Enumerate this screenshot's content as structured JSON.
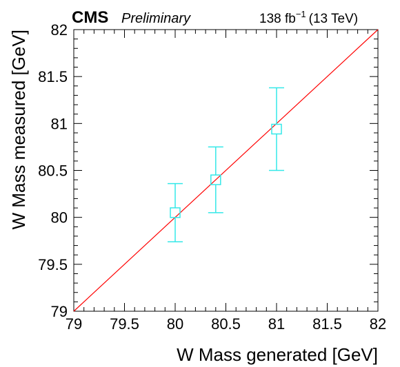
{
  "header": {
    "experiment": "CMS",
    "status": "Preliminary",
    "lumi_value": "138 fb",
    "lumi_exp": "−1",
    "energy": "(13 TeV)"
  },
  "chart_data": {
    "type": "scatter",
    "xlabel": "W Mass generated [GeV]",
    "ylabel": "W Mass measured [GeV]",
    "xlim": [
      79,
      82
    ],
    "ylim": [
      79,
      82
    ],
    "x_ticks": [
      "79",
      "79.5",
      "80",
      "80.5",
      "81",
      "81.5",
      "82"
    ],
    "y_ticks": [
      "79",
      "79.5",
      "80",
      "80.5",
      "81",
      "81.5",
      "82"
    ],
    "grid": false,
    "series": [
      {
        "marker": "open-square",
        "color": "#33e8e8",
        "points": [
          {
            "x": 80.0,
            "y": 80.05,
            "err_low": 0.31,
            "err_high": 0.31
          },
          {
            "x": 80.4,
            "y": 80.4,
            "err_low": 0.35,
            "err_high": 0.35
          },
          {
            "x": 81.0,
            "y": 80.94,
            "err_low": 0.44,
            "err_high": 0.44
          }
        ]
      }
    ],
    "reference_line": {
      "color": "#ff0000",
      "from": [
        79,
        79
      ],
      "to": [
        82,
        82
      ]
    }
  }
}
